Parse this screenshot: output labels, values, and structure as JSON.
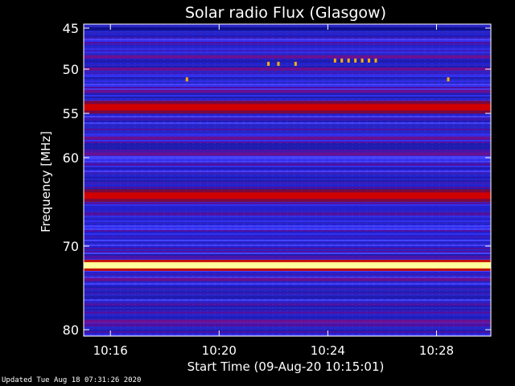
{
  "chart_data": {
    "type": "heatmap",
    "title": "Solar radio Flux (Glasgow)",
    "xlabel": "Start Time (09-Aug-20 10:15:01)",
    "ylabel": "Frequency [MHz]",
    "x_range": [
      "10:15:01",
      "10:30:00"
    ],
    "y_range_mhz": [
      45,
      80
    ],
    "x_ticks": [
      "10:16",
      "10:20",
      "10:24",
      "10:28"
    ],
    "y_ticks": [
      45,
      50,
      55,
      60,
      70,
      80
    ],
    "y_scale": "non-linear",
    "colormap": [
      "#1a1acc",
      "#2828e6",
      "#4040ff",
      "#5a18b0",
      "#8a0c6a",
      "#c00000",
      "#ff0000",
      "#ffff80",
      "#ffffff"
    ],
    "bands": [
      {
        "freq_mhz": 45.1,
        "level": "dark-blue"
      },
      {
        "freq_mhz": 48.5,
        "level": "purple"
      },
      {
        "freq_mhz": 50.0,
        "level": "purple"
      },
      {
        "freq_mhz": 52.5,
        "level": "purple"
      },
      {
        "freq_mhz": 54.3,
        "level": "red"
      },
      {
        "freq_mhz": 57.8,
        "level": "purple"
      },
      {
        "freq_mhz": 59.6,
        "level": "purple"
      },
      {
        "freq_mhz": 64.3,
        "level": "red"
      },
      {
        "freq_mhz": 72.3,
        "level": "white-yellow"
      },
      {
        "freq_mhz": 74.0,
        "level": "purple"
      },
      {
        "freq_mhz": 79.0,
        "level": "purple"
      }
    ],
    "spikes": [
      {
        "time": "10:18:48",
        "freq_mhz": 51.2
      },
      {
        "time": "10:21:48",
        "freq_mhz": 49.4
      },
      {
        "time": "10:22:10",
        "freq_mhz": 49.4
      },
      {
        "time": "10:22:48",
        "freq_mhz": 49.4
      },
      {
        "time": "10:24:15",
        "freq_mhz": 49.0
      },
      {
        "time": "10:24:30",
        "freq_mhz": 49.0
      },
      {
        "time": "10:24:45",
        "freq_mhz": 49.0
      },
      {
        "time": "10:25:00",
        "freq_mhz": 49.0
      },
      {
        "time": "10:25:15",
        "freq_mhz": 49.0
      },
      {
        "time": "10:25:30",
        "freq_mhz": 49.0
      },
      {
        "time": "10:25:45",
        "freq_mhz": 49.0
      },
      {
        "time": "10:28:25",
        "freq_mhz": 51.2
      }
    ]
  },
  "footer": "Updated Tue Aug 18 07:31:26 2020"
}
